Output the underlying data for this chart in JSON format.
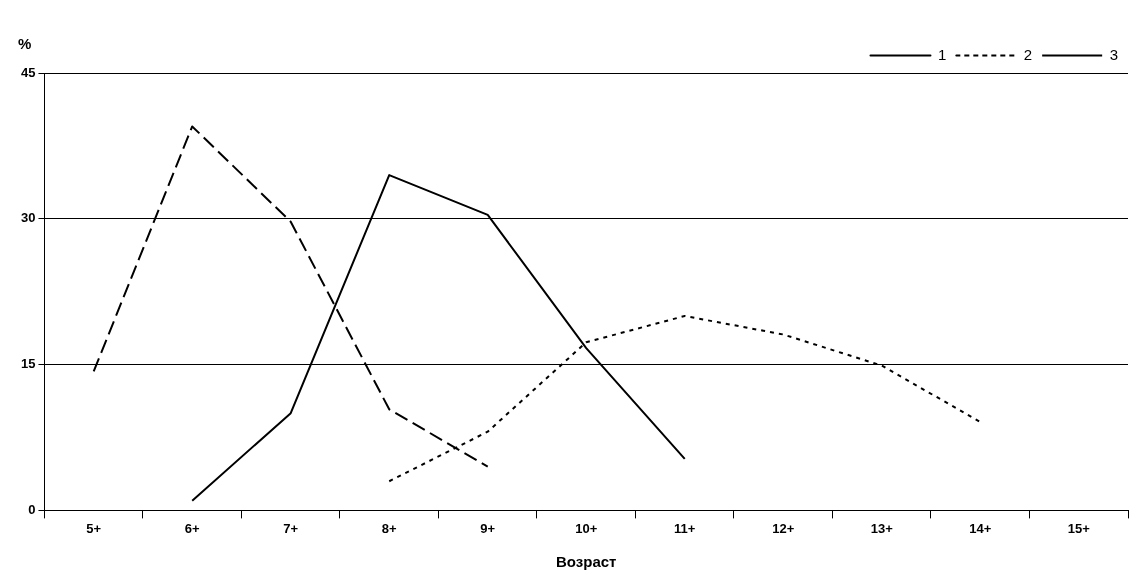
{
  "chart_data": {
    "type": "line",
    "xlabel": "Возраст",
    "ylabel": "%",
    "categories": [
      "5+",
      "6+",
      "7+",
      "8+",
      "9+",
      "10+",
      "11+",
      "12+",
      "13+",
      "14+",
      "15+"
    ],
    "series": [
      {
        "name": "1",
        "color": "#000000",
        "line_style": "solid",
        "values": [
          null,
          1,
          10,
          34.5,
          30.4,
          16.7,
          5.3,
          null,
          null,
          null,
          null
        ]
      },
      {
        "name": "2",
        "color": "#000000",
        "line_style": "dotted",
        "values": [
          null,
          null,
          null,
          3,
          8.1,
          17.3,
          20,
          18.1,
          14.9,
          9.1,
          null
        ]
      },
      {
        "name": "3",
        "color": "#000000",
        "line_style": "dashed",
        "values": [
          14.3,
          39.5,
          29.7,
          10.4,
          4.5,
          null,
          null,
          null,
          null,
          null,
          null
        ]
      }
    ],
    "ylim": [
      0,
      45
    ],
    "yticks": [
      0,
      15,
      30,
      45
    ],
    "grid": "y",
    "legend": "top right",
    "marker": "none"
  }
}
